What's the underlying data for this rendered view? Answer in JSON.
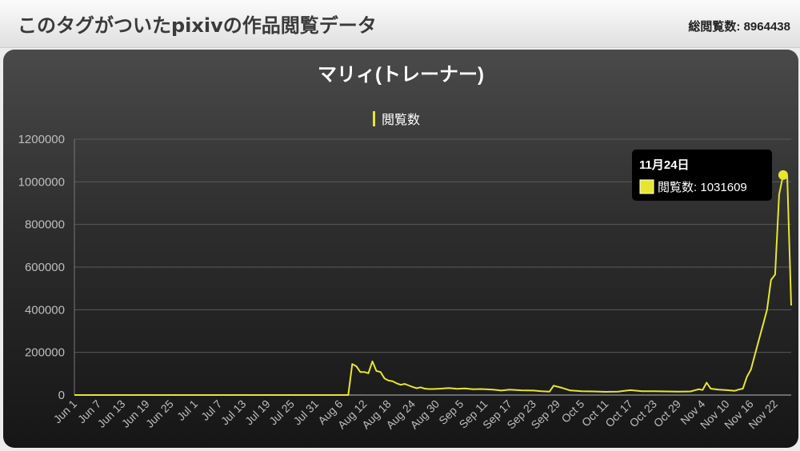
{
  "header": {
    "title": "このタグがついたpixivの作品閲覧データ",
    "total_label": "総閲覧数:",
    "total_value": "8964438"
  },
  "colors": {
    "series": "#e6e62e",
    "tooltip_bg": "#000000",
    "axis_text": "#bdbdbd"
  },
  "tooltip": {
    "date": "11月24日",
    "series": "閲覧数",
    "value": "1031609"
  },
  "chart_data": {
    "type": "line",
    "title": "マリィ(トレーナー)",
    "legend": "top-center",
    "grid": true,
    "ylim": [
      0,
      1200000
    ],
    "yticks": [
      "0",
      "200000",
      "400000",
      "600000",
      "800000",
      "1000000",
      "1200000"
    ],
    "xticks": [
      "Jun 1",
      "Jun 7",
      "Jun 13",
      "Jun 19",
      "Jun 25",
      "Jul 1",
      "Jul 7",
      "Jul 13",
      "Jul 19",
      "Jul 25",
      "Jul 31",
      "Aug 6",
      "Aug 12",
      "Aug 18",
      "Aug 24",
      "Aug 30",
      "Sep 5",
      "Sep 11",
      "Sep 17",
      "Sep 23",
      "Sep 29",
      "Oct 5",
      "Oct 11",
      "Oct 17",
      "Oct 23",
      "Oct 29",
      "Nov 4",
      "Nov 10",
      "Nov 16",
      "Nov 22"
    ],
    "series": [
      {
        "name": "閲覧数",
        "points": [
          [
            "2020-06-01",
            0
          ],
          [
            "2020-08-08",
            0
          ],
          [
            "2020-08-09",
            145000
          ],
          [
            "2020-08-10",
            135000
          ],
          [
            "2020-08-11",
            108000
          ],
          [
            "2020-08-12",
            108000
          ],
          [
            "2020-08-13",
            102000
          ],
          [
            "2020-08-14",
            158000
          ],
          [
            "2020-08-15",
            113000
          ],
          [
            "2020-08-16",
            108000
          ],
          [
            "2020-08-17",
            78000
          ],
          [
            "2020-08-18",
            68000
          ],
          [
            "2020-08-19",
            65000
          ],
          [
            "2020-08-20",
            55000
          ],
          [
            "2020-08-21",
            48000
          ],
          [
            "2020-08-22",
            52000
          ],
          [
            "2020-08-23",
            45000
          ],
          [
            "2020-08-24",
            38000
          ],
          [
            "2020-08-25",
            32000
          ],
          [
            "2020-08-26",
            36000
          ],
          [
            "2020-08-27",
            30000
          ],
          [
            "2020-08-28",
            28000
          ],
          [
            "2020-08-29",
            28000
          ],
          [
            "2020-08-31",
            30000
          ],
          [
            "2020-09-02",
            33000
          ],
          [
            "2020-09-04",
            29000
          ],
          [
            "2020-09-06",
            31000
          ],
          [
            "2020-09-08",
            27000
          ],
          [
            "2020-09-10",
            28000
          ],
          [
            "2020-09-13",
            25000
          ],
          [
            "2020-09-15",
            21000
          ],
          [
            "2020-09-17",
            25000
          ],
          [
            "2020-09-20",
            22000
          ],
          [
            "2020-09-23",
            21000
          ],
          [
            "2020-09-25",
            18000
          ],
          [
            "2020-09-27",
            16000
          ],
          [
            "2020-09-28",
            44000
          ],
          [
            "2020-09-30",
            34000
          ],
          [
            "2020-10-02",
            22000
          ],
          [
            "2020-10-05",
            18000
          ],
          [
            "2020-10-08",
            17000
          ],
          [
            "2020-10-11",
            15000
          ],
          [
            "2020-10-14",
            16000
          ],
          [
            "2020-10-17",
            23000
          ],
          [
            "2020-10-20",
            18000
          ],
          [
            "2020-10-23",
            18000
          ],
          [
            "2020-10-26",
            17000
          ],
          [
            "2020-10-29",
            16000
          ],
          [
            "2020-11-01",
            17000
          ],
          [
            "2020-11-03",
            27000
          ],
          [
            "2020-11-04",
            24000
          ],
          [
            "2020-11-05",
            58000
          ],
          [
            "2020-11-06",
            30000
          ],
          [
            "2020-11-08",
            25000
          ],
          [
            "2020-11-10",
            23000
          ],
          [
            "2020-11-12",
            20000
          ],
          [
            "2020-11-13",
            26000
          ],
          [
            "2020-11-14",
            30000
          ],
          [
            "2020-11-15",
            85000
          ],
          [
            "2020-11-16",
            120000
          ],
          [
            "2020-11-17",
            190000
          ],
          [
            "2020-11-18",
            260000
          ],
          [
            "2020-11-19",
            330000
          ],
          [
            "2020-11-20",
            400000
          ],
          [
            "2020-11-21",
            540000
          ],
          [
            "2020-11-22",
            565000
          ],
          [
            "2020-11-23",
            940000
          ],
          [
            "2020-11-24",
            1031609
          ],
          [
            "2020-11-25",
            1030000
          ],
          [
            "2020-11-26",
            420000
          ]
        ]
      }
    ]
  }
}
